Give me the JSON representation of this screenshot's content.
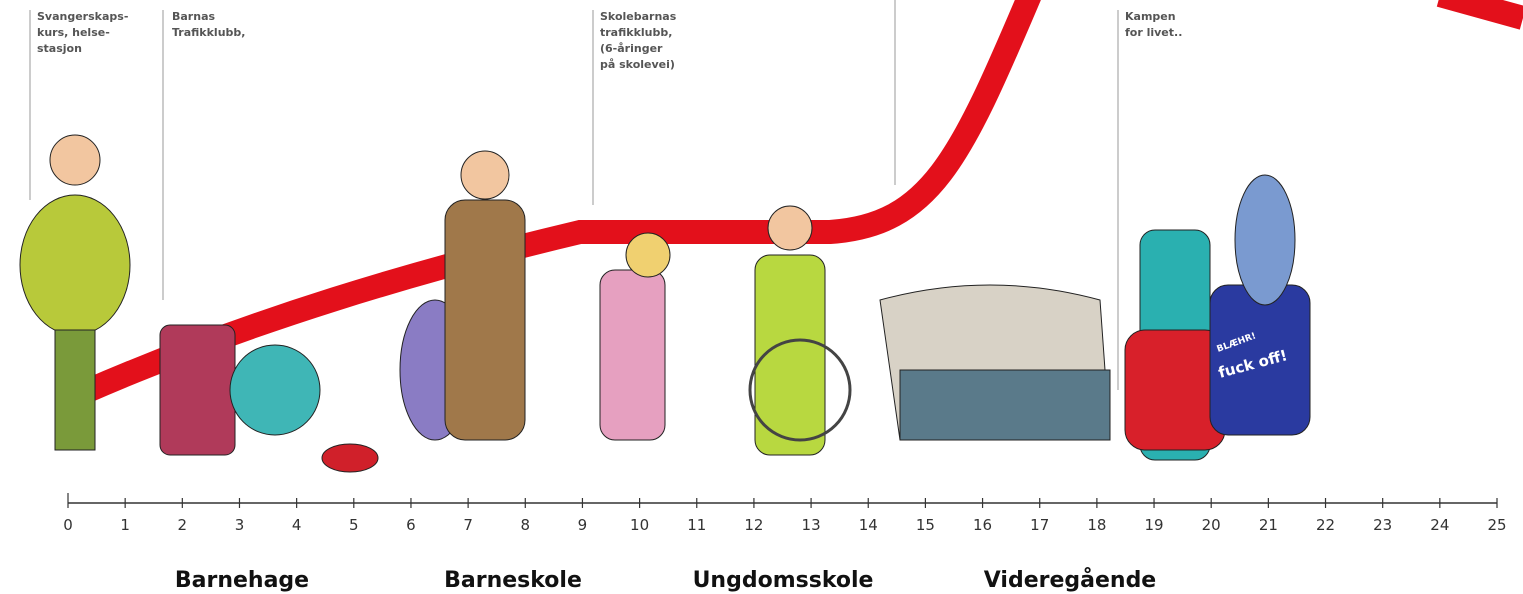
{
  "annotations": [
    {
      "lines": [
        "Svangerskaps-",
        "kurs, helse-",
        "stasjon"
      ]
    },
    {
      "lines": [
        "Barnas",
        "Trafikklubb,"
      ]
    },
    {
      "lines": [
        "Skolebarnas",
        "trafikklubb,",
        "(6-åringer",
        "på skolevei)"
      ]
    },
    {
      "lines": [
        "Kampen",
        "for livet.."
      ]
    }
  ],
  "axis": {
    "ticks": [
      0,
      1,
      2,
      3,
      4,
      5,
      6,
      7,
      8,
      9,
      10,
      11,
      12,
      13,
      14,
      15,
      16,
      17,
      18,
      19,
      20,
      21,
      22,
      23,
      24,
      25
    ]
  },
  "stages": [
    "Barnehage",
    "Barneskole",
    "Ungdomsskole",
    "Videregående"
  ],
  "bubble_text": [
    "BLÆHR!",
    "fuck off!"
  ]
}
